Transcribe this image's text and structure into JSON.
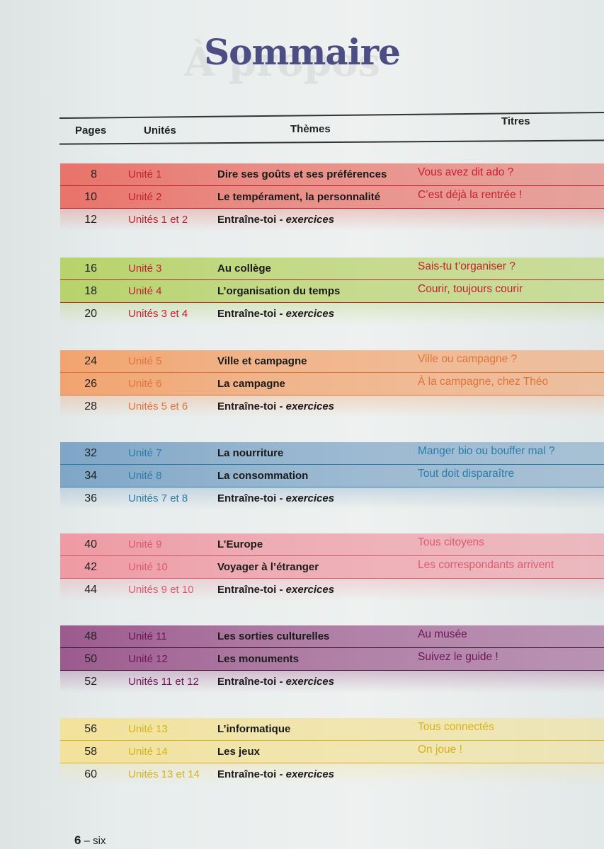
{
  "page": {
    "title": "Sommaire",
    "footer": {
      "number": "6",
      "separator": " – ",
      "word": "six"
    }
  },
  "headers": {
    "pages": "Pages",
    "unites": "Unités",
    "themes": "Thèmes",
    "titres": "Titres"
  },
  "colors": {
    "title": "#4c4d83",
    "group1": "#e8736a",
    "group1_text": "#c42031",
    "group2": "#b7d36a",
    "group2_text": "#c42031",
    "group3": "#f2a46f",
    "group3_text": "#e0733a",
    "group4": "#7fa6c7",
    "group4_text": "#2a7ea9",
    "group5": "#ef9aa4",
    "group5_text": "#dc5a6e",
    "group6": "#9c5a8e",
    "group6_text": "#6e1457",
    "group7": "#f2e29a",
    "group7_text": "#d8b21a"
  },
  "groups": [
    {
      "rows": [
        {
          "page": "8",
          "unit": "Unité 1",
          "theme": "Dire ses goûts et ses préférences",
          "titre": "Vous avez dit ado ?"
        },
        {
          "page": "10",
          "unit": "Unité 2",
          "theme": "Le tempérament, la personnalité",
          "titre": "C’est déjà la rentrée !"
        },
        {
          "page": "12",
          "unit": "Unités 1 et 2",
          "theme": "Entraîne-toi - ",
          "theme_italic": "exercices",
          "titre": ""
        }
      ]
    },
    {
      "rows": [
        {
          "page": "16",
          "unit": "Unité 3",
          "theme": "Au collège",
          "titre": "Sais-tu t’organiser ?"
        },
        {
          "page": "18",
          "unit": "Unité 4",
          "theme": "L’organisation du temps",
          "titre": "Courir, toujours courir"
        },
        {
          "page": "20",
          "unit": "Unités 3 et 4",
          "theme": "Entraîne-toi - ",
          "theme_italic": "exercices",
          "titre": ""
        }
      ]
    },
    {
      "rows": [
        {
          "page": "24",
          "unit": "Unité 5",
          "theme": "Ville et campagne",
          "titre": "Ville ou campagne ?"
        },
        {
          "page": "26",
          "unit": "Unité 6",
          "theme": "La campagne",
          "titre": "À la campagne, chez Théo"
        },
        {
          "page": "28",
          "unit": "Unités 5 et 6",
          "theme": "Entraîne-toi - ",
          "theme_italic": "exercices",
          "titre": ""
        }
      ]
    },
    {
      "rows": [
        {
          "page": "32",
          "unit": "Unité 7",
          "theme": "La nourriture",
          "titre": "Manger bio ou bouffer mal ?"
        },
        {
          "page": "34",
          "unit": "Unité 8",
          "theme": "La consommation",
          "titre": "Tout doit disparaître"
        },
        {
          "page": "36",
          "unit": "Unités 7 et 8",
          "theme": "Entraîne-toi - ",
          "theme_italic": "exercices",
          "titre": ""
        }
      ]
    },
    {
      "rows": [
        {
          "page": "40",
          "unit": "Unité 9",
          "theme": "L’Europe",
          "titre": "Tous citoyens"
        },
        {
          "page": "42",
          "unit": "Unité 10",
          "theme": "Voyager à l’étranger",
          "titre": "Les correspondants arrivent"
        },
        {
          "page": "44",
          "unit": "Unités 9 et 10",
          "theme": "Entraîne-toi - ",
          "theme_italic": "exercices",
          "titre": ""
        }
      ]
    },
    {
      "rows": [
        {
          "page": "48",
          "unit": "Unité 11",
          "theme": "Les sorties culturelles",
          "titre": "Au musée"
        },
        {
          "page": "50",
          "unit": "Unité 12",
          "theme": "Les monuments",
          "titre": "Suivez le guide !"
        },
        {
          "page": "52",
          "unit": "Unités 11 et 12",
          "theme": "Entraîne-toi - ",
          "theme_italic": "exercices",
          "titre": ""
        }
      ]
    },
    {
      "rows": [
        {
          "page": "56",
          "unit": "Unité 13",
          "theme": "L’informatique",
          "titre": "Tous connectés"
        },
        {
          "page": "58",
          "unit": "Unité 14",
          "theme": "Les jeux",
          "titre": "On joue !"
        },
        {
          "page": "60",
          "unit": "Unités 13 et 14",
          "theme": "Entraîne-toi - ",
          "theme_italic": "exercices",
          "titre": ""
        }
      ]
    }
  ]
}
